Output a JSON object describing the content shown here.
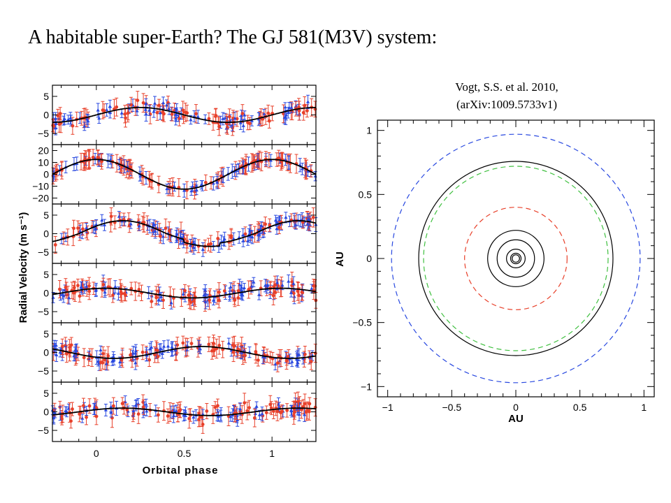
{
  "slide": {
    "title": "A habitable super-Earth? The GJ 581(M3V) system:",
    "citation_line1": "Vogt, S.S. et al. 2010,",
    "citation_line2": "(arXiv:1009.5733v1)"
  },
  "colors": {
    "red": "#e8402a",
    "blue": "#2848e0",
    "green": "#40c040",
    "curve": "#000000"
  },
  "chart_data": [
    {
      "type": "scatter",
      "xlabel": "Orbital phase",
      "ylabel": "Radial Velocity (m s⁻¹)",
      "xlim": [
        -0.25,
        1.25
      ],
      "x_ticks": [
        "0",
        "0.5",
        "1"
      ],
      "series": [
        {
          "marker_color": "red"
        },
        {
          "marker_color": "blue"
        }
      ],
      "panels": [
        {
          "ylim": [
            -8,
            8
          ],
          "y_ticks": [
            "5",
            "0",
            "−5"
          ],
          "amp": 2.0,
          "phase": 0.25,
          "scatter": 2.6
        },
        {
          "ylim": [
            -25,
            25
          ],
          "y_ticks": [
            "20",
            "10",
            "0",
            "−10",
            "−20"
          ],
          "amp": 12.5,
          "phase": 0.0,
          "scatter": 2.4
        },
        {
          "ylim": [
            -8,
            8
          ],
          "y_ticks": [
            "5",
            "0",
            "−5"
          ],
          "amp": 3.5,
          "phase": 0.15,
          "scatter": 1.8,
          "eccentric": true
        },
        {
          "ylim": [
            -8,
            8
          ],
          "y_ticks": [
            "5",
            "0",
            "−5"
          ],
          "amp": 1.3,
          "phase": 0.05,
          "scatter": 2.3
        },
        {
          "ylim": [
            -8,
            8
          ],
          "y_ticks": [
            "5",
            "0",
            "−5"
          ],
          "amp": 1.6,
          "phase": 0.6,
          "scatter": 2.3
        },
        {
          "ylim": [
            -8,
            8
          ],
          "y_ticks": [
            "5",
            "0",
            "−5"
          ],
          "amp": 1.0,
          "phase": 0.15,
          "scatter": 2.4
        }
      ]
    },
    {
      "type": "scatter",
      "xlabel": "AU",
      "ylabel": "AU",
      "xlim": [
        -1.08,
        1.08
      ],
      "ylim": [
        -1.08,
        1.08
      ],
      "x_ticks": [
        {
          "v": -1,
          "t": "−1"
        },
        {
          "v": -0.5,
          "t": "−0.5"
        },
        {
          "v": 0,
          "t": "0"
        },
        {
          "v": 0.5,
          "t": "0.5"
        },
        {
          "v": 1,
          "t": "1"
        }
      ],
      "y_ticks": [
        {
          "v": 1,
          "t": "1"
        },
        {
          "v": 0.5,
          "t": "0.5"
        },
        {
          "v": 0,
          "t": "0"
        },
        {
          "v": -0.5,
          "t": "−0.5"
        },
        {
          "v": -1,
          "t": "−1"
        }
      ],
      "orbits": [
        {
          "r": 0.029,
          "style": "solid",
          "color": "curve"
        },
        {
          "r": 0.041,
          "style": "solid",
          "color": "curve"
        },
        {
          "r": 0.073,
          "style": "solid",
          "color": "curve"
        },
        {
          "r": 0.146,
          "style": "solid",
          "color": "curve"
        },
        {
          "r": 0.22,
          "style": "solid",
          "color": "curve"
        },
        {
          "r": 0.4,
          "style": "dashed",
          "color": "red"
        },
        {
          "r": 0.72,
          "style": "dashed",
          "color": "green"
        },
        {
          "r": 0.758,
          "style": "solid",
          "color": "curve"
        },
        {
          "r": 0.97,
          "style": "dashed",
          "color": "blue"
        }
      ]
    }
  ]
}
